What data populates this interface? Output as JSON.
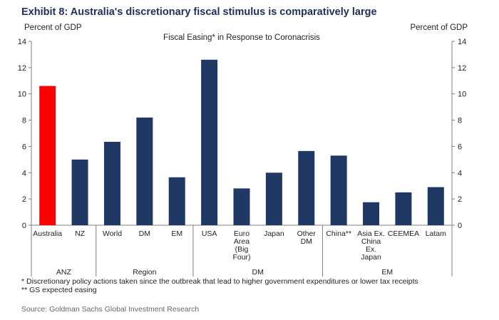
{
  "chart_data": {
    "type": "bar",
    "title": "Exhibit 8: Australia's discretionary fiscal stimulus is comparatively large",
    "subtitle": "Fiscal Easing* in Response to Coronacrisis",
    "ylabel_left": "Percent of GDP",
    "ylabel_right": "Percent of GDP",
    "ylim": [
      0,
      14
    ],
    "yticks": [
      "0",
      "2",
      "4",
      "6",
      "8",
      "10",
      "12",
      "14"
    ],
    "categories": [
      {
        "label": [
          "Australia"
        ],
        "value": 10.6,
        "highlight": true
      },
      {
        "label": [
          "NZ"
        ],
        "value": 5.0
      },
      {
        "label": [
          "World"
        ],
        "value": 6.35
      },
      {
        "label": [
          "DM"
        ],
        "value": 8.2
      },
      {
        "label": [
          "EM"
        ],
        "value": 3.65
      },
      {
        "label": [
          "USA"
        ],
        "value": 12.6
      },
      {
        "label": [
          "Euro",
          "Area",
          "(Big",
          "Four)"
        ],
        "value": 2.8
      },
      {
        "label": [
          "Japan"
        ],
        "value": 4.0
      },
      {
        "label": [
          "Other",
          "DM"
        ],
        "value": 5.65
      },
      {
        "label": [
          "China**"
        ],
        "value": 5.3
      },
      {
        "label": [
          "Asia Ex.",
          "China",
          "Ex.",
          "Japan"
        ],
        "value": 1.75
      },
      {
        "label": [
          "CEEMEA"
        ],
        "value": 2.5
      },
      {
        "label": [
          "Latam"
        ],
        "value": 2.9
      }
    ],
    "groups": [
      {
        "name": "ANZ",
        "start": 0,
        "end": 1
      },
      {
        "name": "Region",
        "start": 2,
        "end": 4
      },
      {
        "name": "DM",
        "start": 5,
        "end": 8
      },
      {
        "name": "EM",
        "start": 9,
        "end": 12
      }
    ],
    "colors": {
      "bar": "#1f3864",
      "highlight": "#ff0000",
      "axis": "#7f7f7f"
    }
  },
  "footnotes": [
    "* Discretionary policy actions taken since the outbreak that lead to higher government expenditures or lower tax receipts",
    "** GS expected easing"
  ],
  "source": "Source: Goldman Sachs Global Investment Research"
}
